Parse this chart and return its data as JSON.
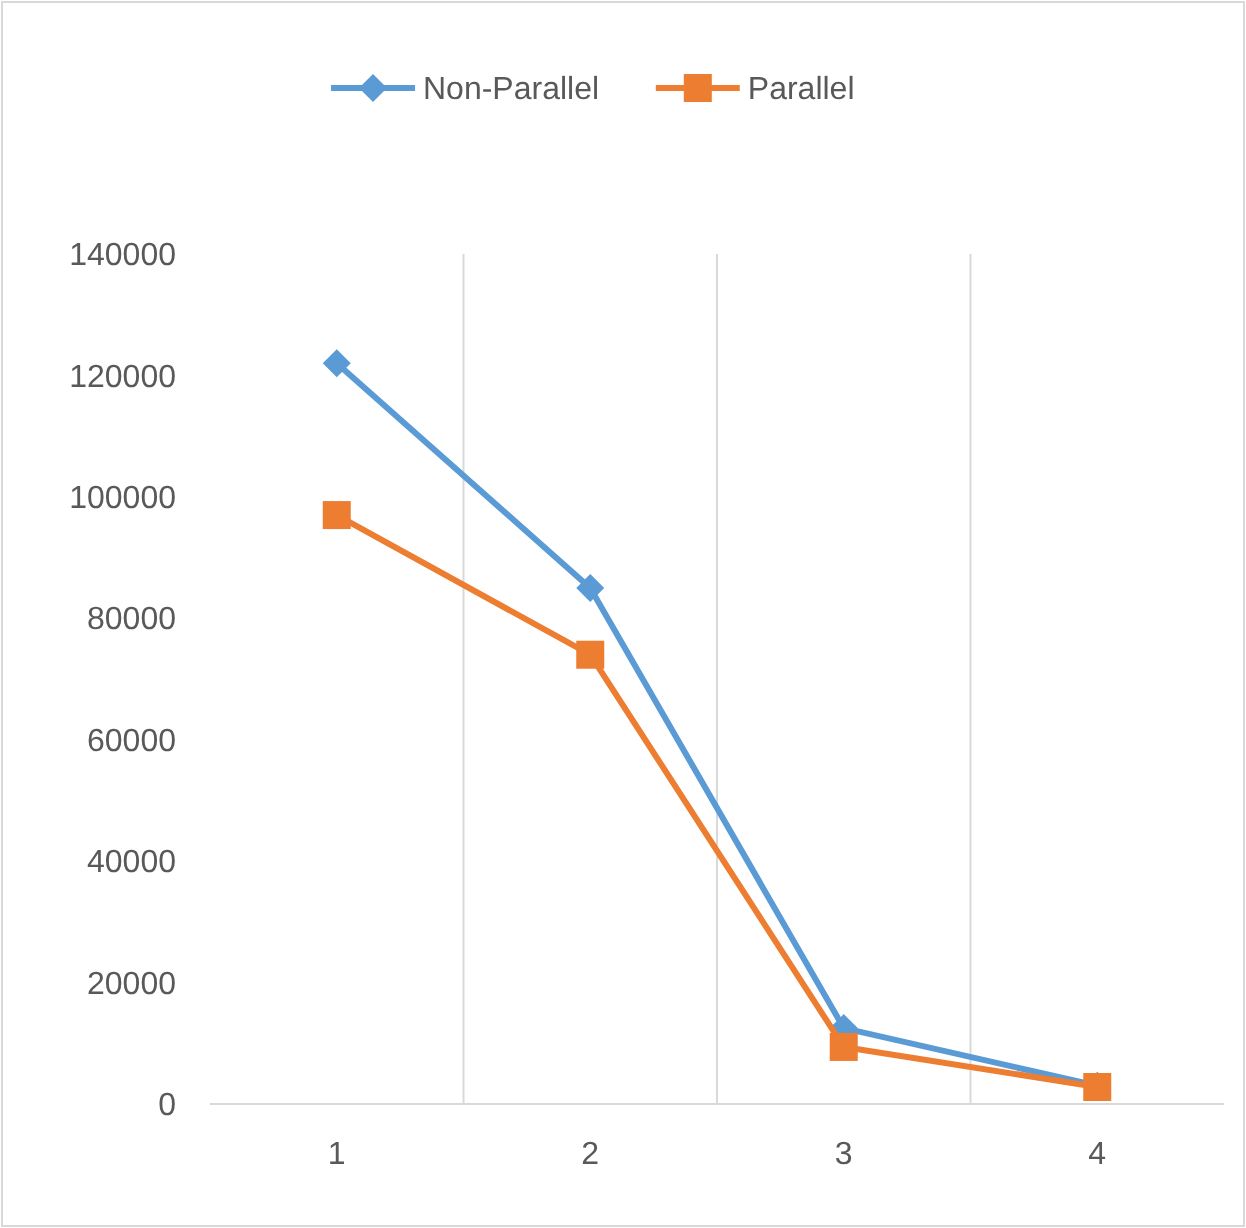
{
  "chart_data": {
    "type": "line",
    "categories": [
      "1",
      "2",
      "3",
      "4"
    ],
    "series": [
      {
        "name": "Non-Parallel",
        "color": "#5b9bd5",
        "values": [
          122000,
          85000,
          12500,
          3000
        ],
        "marker": "diamond"
      },
      {
        "name": "Parallel",
        "color": "#ed7d31",
        "values": [
          97000,
          74000,
          9400,
          2800
        ],
        "marker": "square"
      }
    ],
    "ylim": [
      0,
      140000
    ],
    "yticks": [
      0,
      20000,
      40000,
      60000,
      80000,
      100000,
      120000,
      140000
    ],
    "grid": "x",
    "legend": "top",
    "line_style": "solid"
  }
}
